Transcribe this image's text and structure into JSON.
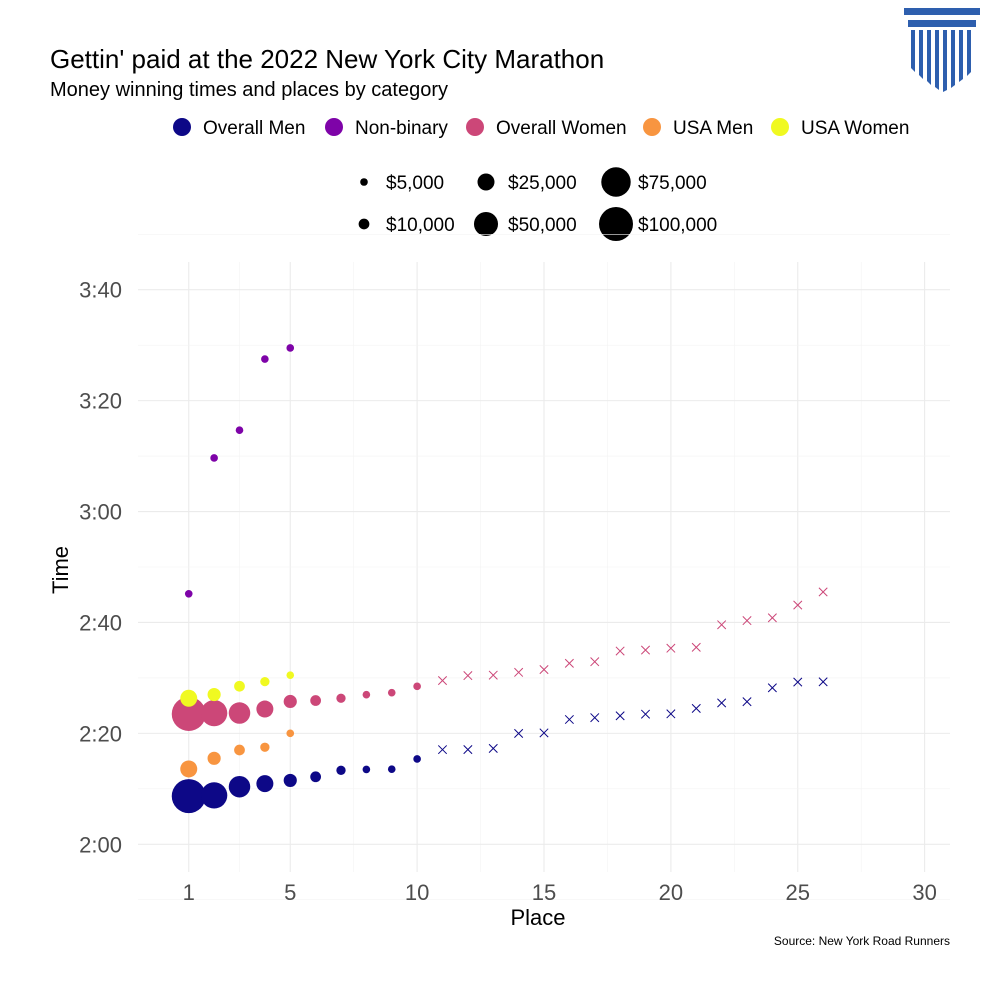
{
  "chart_data": {
    "type": "scatter",
    "title": "Gettin' paid at the 2022 New York City Marathon",
    "subtitle": "Money winning times and places by category",
    "xlabel": "Place",
    "ylabel": "Time",
    "source": "Source: New York Road Runners",
    "xlim": [
      -1,
      31
    ],
    "ylim_minutes": [
      115,
      225
    ],
    "x_ticks": [
      1,
      5,
      10,
      15,
      20,
      25,
      30
    ],
    "x_tick_labels": [
      "1",
      "5",
      "10",
      "15",
      "20",
      "25",
      "30"
    ],
    "y_ticks_minutes": [
      120,
      140,
      160,
      180,
      200,
      220
    ],
    "y_tick_labels": [
      "2:00",
      "2:20",
      "2:40",
      "3:00",
      "3:20",
      "3:40"
    ],
    "grid": true,
    "legend_position": "top",
    "size_legend": [
      {
        "label": "$5,000",
        "value": 5000
      },
      {
        "label": "$10,000",
        "value": 10000
      },
      {
        "label": "$25,000",
        "value": 25000
      },
      {
        "label": "$50,000",
        "value": 50000
      },
      {
        "label": "$75,000",
        "value": 75000
      },
      {
        "label": "$100,000",
        "value": 100000
      }
    ],
    "series": [
      {
        "name": "Overall Men",
        "color": "#0d0887",
        "x": [
          1,
          2,
          3,
          4,
          5,
          6,
          7,
          8,
          9,
          10,
          11,
          12,
          13,
          14,
          15,
          16,
          17,
          18,
          19,
          20,
          21,
          22,
          23,
          24,
          25,
          26
        ],
        "y": [
          "2:08:41",
          "2:08:49",
          "2:10:23",
          "2:10:56",
          "2:11:31",
          "2:12:10",
          "2:13:20",
          "2:13:30",
          "2:13:32",
          "2:15:23",
          "2:17:04",
          "2:17:05",
          "2:17:17",
          "2:19:59",
          "2:20:05",
          "2:22:30",
          "2:22:50",
          "2:23:10",
          "2:23:28",
          "2:23:31",
          "2:24:30",
          "2:25:29",
          "2:25:43",
          "2:28:13",
          "2:29:15",
          "2:29:18"
        ],
        "prize": [
          100000,
          60000,
          40000,
          25000,
          15000,
          10000,
          7500,
          5000,
          5000,
          5000,
          null,
          null,
          null,
          null,
          null,
          null,
          null,
          null,
          null,
          null,
          null,
          null,
          null,
          null,
          null,
          null
        ]
      },
      {
        "name": "Non-binary",
        "color": "#7e03a8",
        "x": [
          1,
          2,
          3,
          4,
          5
        ],
        "y": [
          "2:45:10",
          "3:09:40",
          "3:14:40",
          "3:27:30",
          "3:29:30"
        ],
        "prize": [
          5000,
          5000,
          5000,
          5000,
          5000
        ]
      },
      {
        "name": "Overall Women",
        "color": "#cc4778",
        "x": [
          1,
          2,
          3,
          4,
          5,
          6,
          7,
          8,
          9,
          10,
          11,
          12,
          13,
          14,
          15,
          16,
          17,
          18,
          19,
          20,
          21,
          22,
          23,
          24,
          25,
          26
        ],
        "y": [
          "2:23:30",
          "2:23:39",
          "2:23:40",
          "2:24:23",
          "2:25:45",
          "2:25:55",
          "2:26:20",
          "2:26:58",
          "2:27:20",
          "2:28:29",
          "2:29:31",
          "2:30:25",
          "2:30:30",
          "2:31:00",
          "2:31:30",
          "2:32:38",
          "2:32:55",
          "2:34:51",
          "2:35:01",
          "2:35:21",
          "2:35:31",
          "2:39:35",
          "2:40:20",
          "2:40:50",
          "2:43:08",
          "2:45:30"
        ],
        "prize": [
          100000,
          60000,
          40000,
          25000,
          15000,
          10000,
          7500,
          5000,
          5000,
          5000,
          null,
          null,
          null,
          null,
          null,
          null,
          null,
          null,
          null,
          null,
          null,
          null,
          null,
          null,
          null,
          null
        ]
      },
      {
        "name": "USA Men",
        "color": "#f89540",
        "x": [
          1,
          2,
          3,
          4,
          5
        ],
        "y": [
          "2:13:35",
          "2:15:30",
          "2:17:00",
          "2:17:30",
          "2:20:00"
        ],
        "prize": [
          25000,
          15000,
          10000,
          7500,
          5000
        ]
      },
      {
        "name": "USA Women",
        "color": "#f0f921",
        "x": [
          1,
          2,
          3,
          4,
          5
        ],
        "y": [
          "2:26:20",
          "2:27:00",
          "2:28:30",
          "2:29:20",
          "2:30:30"
        ],
        "prize": [
          25000,
          15000,
          10000,
          7500,
          5000
        ]
      }
    ]
  }
}
